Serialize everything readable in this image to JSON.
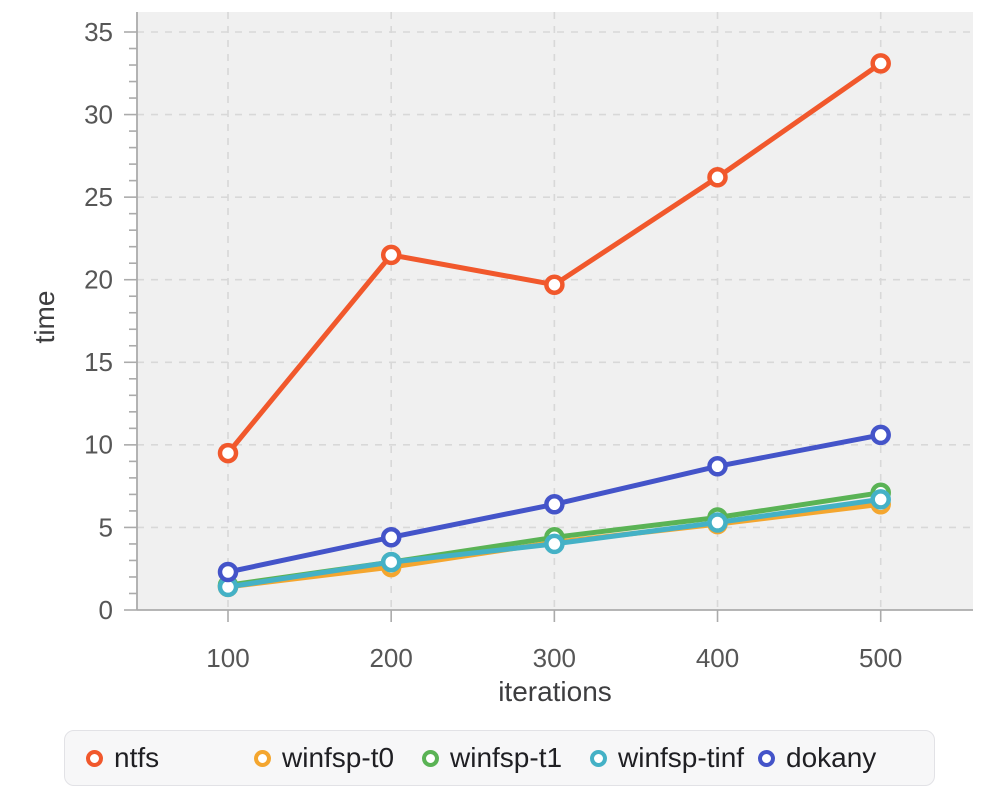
{
  "chart_data": {
    "type": "line",
    "x": [
      100,
      200,
      300,
      400,
      500
    ],
    "series": [
      {
        "name": "ntfs",
        "color": "#f1582c",
        "values": [
          9.5,
          21.5,
          19.7,
          26.2,
          33.1
        ]
      },
      {
        "name": "winfsp-t0",
        "color": "#f4a62f",
        "values": [
          1.4,
          2.6,
          4.1,
          5.2,
          6.4
        ]
      },
      {
        "name": "winfsp-t1",
        "color": "#5ab355",
        "values": [
          1.5,
          2.9,
          4.4,
          5.6,
          7.1
        ]
      },
      {
        "name": "winfsp-tinf",
        "color": "#44b1c6",
        "values": [
          1.4,
          2.9,
          4.0,
          5.3,
          6.7
        ]
      },
      {
        "name": "dokany",
        "color": "#4454c9",
        "values": [
          2.3,
          4.4,
          6.4,
          8.7,
          10.6
        ]
      }
    ],
    "title": "",
    "xlabel": "iterations",
    "ylabel": "time",
    "xticks": [
      100,
      200,
      300,
      400,
      500
    ],
    "yticks": [
      0,
      5,
      10,
      15,
      20,
      25,
      30,
      35
    ],
    "ylim": [
      0,
      35
    ],
    "grid": true,
    "grid_style": "dashed",
    "legend_position": "bottom"
  },
  "style": {
    "plot_bg": "#f0f0f0",
    "grid_color": "#d8d8d8",
    "axis_color": "#ababab",
    "tick_text_color": "#565656",
    "axis_title_color": "#3d3d3f",
    "legend_bg": "#f7f7f8",
    "legend_border": "#e2e2e6",
    "legend_text_color": "#1f1f23",
    "marker_fill": "#ffffff"
  }
}
